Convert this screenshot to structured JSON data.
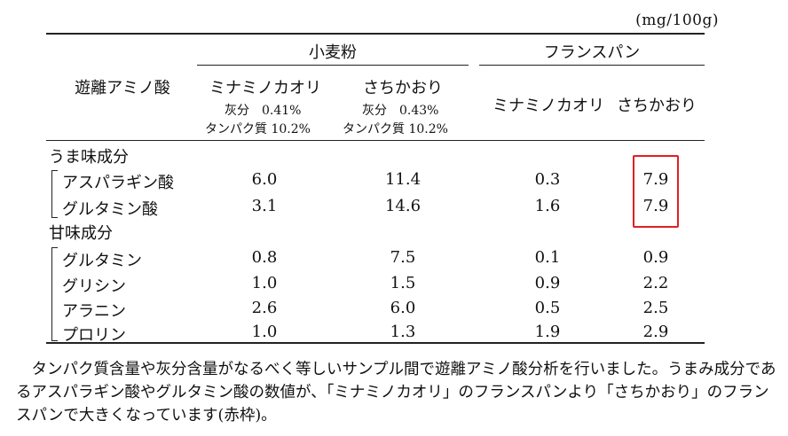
{
  "unit": "(mg/100g)",
  "header": {
    "col_label": "遊離アミノ酸",
    "group1": "小麦粉",
    "group2": "フランスパン",
    "flour_cols": [
      {
        "name": "ミナミノカオリ",
        "ash": "灰分　0.41%",
        "protein": "タンパク質 10.2%"
      },
      {
        "name": "さちかおり",
        "ash": "灰分　0.43%",
        "protein": "タンパク質 10.2%"
      }
    ],
    "bread_cols": [
      {
        "name": "ミナミノカオリ"
      },
      {
        "name": "さちかおり"
      }
    ]
  },
  "sections": [
    {
      "title": "うま味成分",
      "rows": [
        {
          "label": "アスパラギン酸",
          "values": [
            "6.0",
            "11.4",
            "0.3",
            "7.9"
          ]
        },
        {
          "label": "グルタミン酸",
          "values": [
            "3.1",
            "14.6",
            "1.6",
            "7.9"
          ]
        }
      ]
    },
    {
      "title": "甘味成分",
      "rows": [
        {
          "label": "グルタミン",
          "values": [
            "0.8",
            "7.5",
            "0.1",
            "0.9"
          ]
        },
        {
          "label": "グリシン",
          "values": [
            "1.0",
            "1.5",
            "0.9",
            "2.2"
          ]
        },
        {
          "label": "アラニン",
          "values": [
            "2.6",
            "6.0",
            "0.5",
            "2.5"
          ]
        },
        {
          "label": "プロリン",
          "values": [
            "1.0",
            "1.3",
            "1.9",
            "2.9"
          ]
        }
      ]
    }
  ],
  "highlight_color": "#e02020",
  "note": "タンパク質含量や灰分含量がなるべく等しいサンプル間で遊離アミノ酸分析を行いました。うまみ成分であるアスパラギン酸やグルタミン酸の数値が、「ミナミノカオリ」のフランスパンより「さちかおり」のフランスパンで大きくなっています(赤枠)。"
}
